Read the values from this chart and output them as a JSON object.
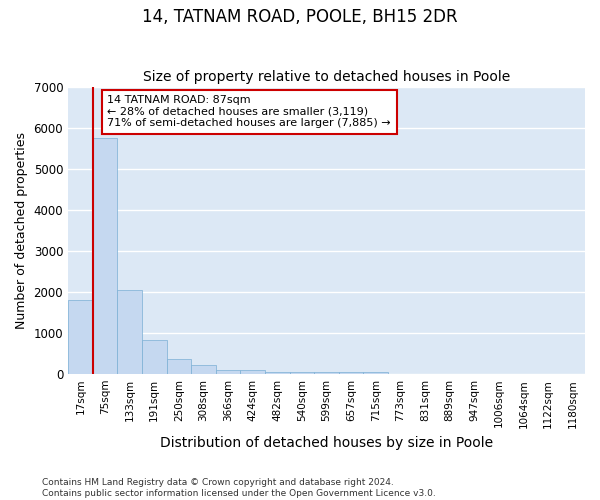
{
  "title": "14, TATNAM ROAD, POOLE, BH15 2DR",
  "subtitle": "Size of property relative to detached houses in Poole",
  "xlabel": "Distribution of detached houses by size in Poole",
  "ylabel": "Number of detached properties",
  "bin_labels": [
    "17sqm",
    "75sqm",
    "133sqm",
    "191sqm",
    "250sqm",
    "308sqm",
    "366sqm",
    "424sqm",
    "482sqm",
    "540sqm",
    "599sqm",
    "657sqm",
    "715sqm",
    "773sqm",
    "831sqm",
    "889sqm",
    "947sqm",
    "1006sqm",
    "1064sqm",
    "1122sqm",
    "1180sqm"
  ],
  "bar_heights": [
    1800,
    5750,
    2050,
    820,
    370,
    220,
    100,
    100,
    50,
    50,
    50,
    50,
    50,
    0,
    0,
    0,
    0,
    0,
    0,
    0,
    0
  ],
  "bar_color": "#c5d8f0",
  "bar_edge_color": "#7bafd4",
  "plot_bg_color": "#dce8f5",
  "fig_bg_color": "#ffffff",
  "grid_color": "#ffffff",
  "vline_color": "#cc0000",
  "vline_x_index": 0.5,
  "annotation_line1": "14 TATNAM ROAD: 87sqm",
  "annotation_line2": "← 28% of detached houses are smaller (3,119)",
  "annotation_line3": "71% of semi-detached houses are larger (7,885) →",
  "annotation_box_facecolor": "#ffffff",
  "annotation_box_edgecolor": "#cc0000",
  "ylim_max": 7000,
  "yticks": [
    0,
    1000,
    2000,
    3000,
    4000,
    5000,
    6000,
    7000
  ],
  "footer_line1": "Contains HM Land Registry data © Crown copyright and database right 2024.",
  "footer_line2": "Contains public sector information licensed under the Open Government Licence v3.0."
}
